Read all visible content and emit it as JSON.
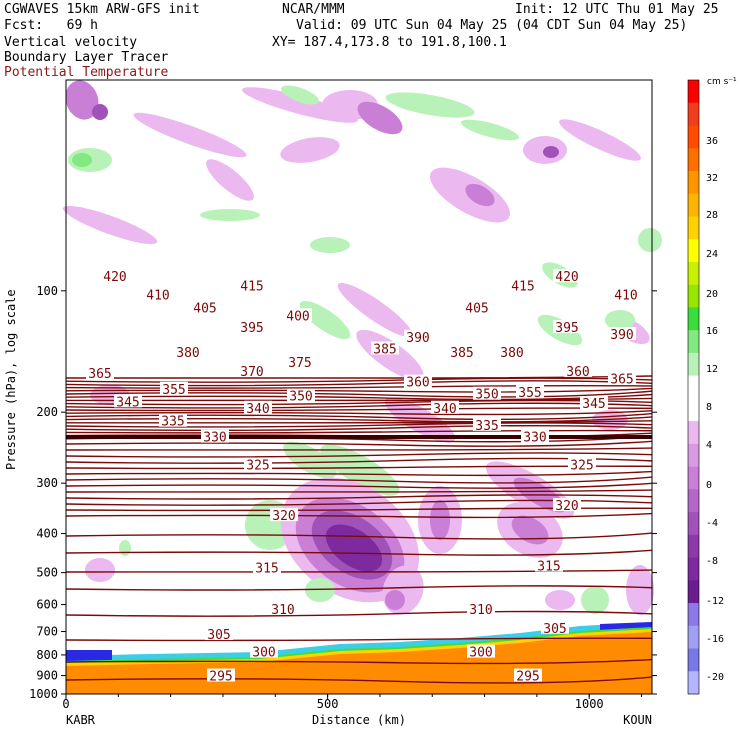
{
  "header": {
    "model": "CGWAVES 15km ARW-GFS init",
    "forecast": "Fcst:   69 h",
    "field1": "Vertical velocity",
    "field2": "Boundary Layer Tracer",
    "field3": "Potential Temperature",
    "center": "NCAR/MMM",
    "init": "Init: 12 UTC Thu 01 May 25",
    "valid": "Valid: 09 UTC Sun 04 May 25 (04 CDT Sun 04 May 25)",
    "xy": "XY= 187.4,173.8 to 191.8,100.1"
  },
  "colors": {
    "theta_line": "#7a0a0a",
    "down_light": "#ebb8f0",
    "down_mid": "#c97fd6",
    "down_dark": "#a152b8",
    "down_darker": "#7d2a9e",
    "up_light": "#b8f2b8",
    "up_mid": "#82e882",
    "bl_orange": "#ff8c00",
    "bl_yellow": "#ffd200",
    "bl_green": "#3ce03c",
    "bl_cyan": "#28c8e6",
    "bl_blue": "#2828e6"
  },
  "chart_data": {
    "type": "heatmap",
    "title": "Vertical velocity / Boundary Layer Tracer / Potential Temperature",
    "xlabel": "Distance (km)",
    "ylabel": "Pressure (hPa), log scale",
    "x_ticks": [
      0,
      500,
      1000
    ],
    "x_range": [
      0,
      1120
    ],
    "y_ticks": [
      100,
      200,
      300,
      400,
      500,
      600,
      700,
      800,
      900,
      1000
    ],
    "y_scale": "log",
    "y_range": [
      1000,
      30
    ],
    "x_endpoints": [
      "KABR",
      "KOUN"
    ],
    "colorbar": {
      "units": "cm s⁻¹",
      "ticks": [
        36,
        32,
        28,
        24,
        20,
        16,
        12,
        8,
        4,
        0,
        -4,
        -8,
        -12,
        -16,
        -20
      ],
      "colors": [
        "#ff0000",
        "#f23c1e",
        "#ff4a00",
        "#ff6e00",
        "#ff9600",
        "#ffb400",
        "#ffd200",
        "#ffff00",
        "#c8f000",
        "#96e600",
        "#3cdc3c",
        "#82e882",
        "#b8f2b8",
        "#ffffff",
        "#ffffff",
        "#ebb8f0",
        "#d89ae3",
        "#c97fd6",
        "#b567c8",
        "#a152b8",
        "#8c3aa8",
        "#7d2a9e",
        "#6a1e8e",
        "#8c78e6",
        "#a0a0f0",
        "#7878e6",
        "#b4b4ff"
      ]
    },
    "theta_labels": [
      {
        "v": "420",
        "x": 115,
        "p": 92
      },
      {
        "v": "410",
        "x": 158,
        "p": 102
      },
      {
        "v": "415",
        "x": 252,
        "p": 97
      },
      {
        "v": "405",
        "x": 205,
        "p": 110
      },
      {
        "v": "400",
        "x": 298,
        "p": 115
      },
      {
        "v": "395",
        "x": 252,
        "p": 123
      },
      {
        "v": "380",
        "x": 188,
        "p": 142
      },
      {
        "v": "375",
        "x": 300,
        "p": 150
      },
      {
        "v": "370",
        "x": 252,
        "p": 158
      },
      {
        "v": "385",
        "x": 385,
        "p": 139
      },
      {
        "v": "390",
        "x": 418,
        "p": 130
      },
      {
        "v": "385",
        "x": 462,
        "p": 142
      },
      {
        "v": "380",
        "x": 512,
        "p": 142
      },
      {
        "v": "405",
        "x": 477,
        "p": 110
      },
      {
        "v": "415",
        "x": 523,
        "p": 97
      },
      {
        "v": "420",
        "x": 567,
        "p": 92
      },
      {
        "v": "410",
        "x": 626,
        "p": 102
      },
      {
        "v": "395",
        "x": 567,
        "p": 123
      },
      {
        "v": "390",
        "x": 622,
        "p": 128
      },
      {
        "v": "365",
        "x": 100,
        "p": 160
      },
      {
        "v": "360",
        "x": 418,
        "p": 168
      },
      {
        "v": "360",
        "x": 578,
        "p": 158
      },
      {
        "v": "365",
        "x": 622,
        "p": 165
      },
      {
        "v": "345",
        "x": 128,
        "p": 188
      },
      {
        "v": "355",
        "x": 174,
        "p": 175
      },
      {
        "v": "350",
        "x": 301,
        "p": 182
      },
      {
        "v": "355",
        "x": 530,
        "p": 178
      },
      {
        "v": "350",
        "x": 487,
        "p": 180
      },
      {
        "v": "340",
        "x": 258,
        "p": 195
      },
      {
        "v": "340",
        "x": 445,
        "p": 195
      },
      {
        "v": "345",
        "x": 594,
        "p": 190
      },
      {
        "v": "335",
        "x": 173,
        "p": 210
      },
      {
        "v": "335",
        "x": 487,
        "p": 215
      },
      {
        "v": "330",
        "x": 215,
        "p": 230
      },
      {
        "v": "330",
        "x": 535,
        "p": 230
      },
      {
        "v": "325",
        "x": 258,
        "p": 270
      },
      {
        "v": "325",
        "x": 582,
        "p": 270
      },
      {
        "v": "320",
        "x": 284,
        "p": 360
      },
      {
        "v": "320",
        "x": 567,
        "p": 340
      },
      {
        "v": "315",
        "x": 267,
        "p": 485
      },
      {
        "v": "315",
        "x": 549,
        "p": 480
      },
      {
        "v": "310",
        "x": 283,
        "p": 615
      },
      {
        "v": "310",
        "x": 481,
        "p": 615
      },
      {
        "v": "305",
        "x": 219,
        "p": 710
      },
      {
        "v": "305",
        "x": 555,
        "p": 685
      },
      {
        "v": "300",
        "x": 264,
        "p": 785
      },
      {
        "v": "300",
        "x": 481,
        "p": 785
      },
      {
        "v": "295",
        "x": 221,
        "p": 900
      },
      {
        "v": "295",
        "x": 528,
        "p": 900
      }
    ]
  }
}
